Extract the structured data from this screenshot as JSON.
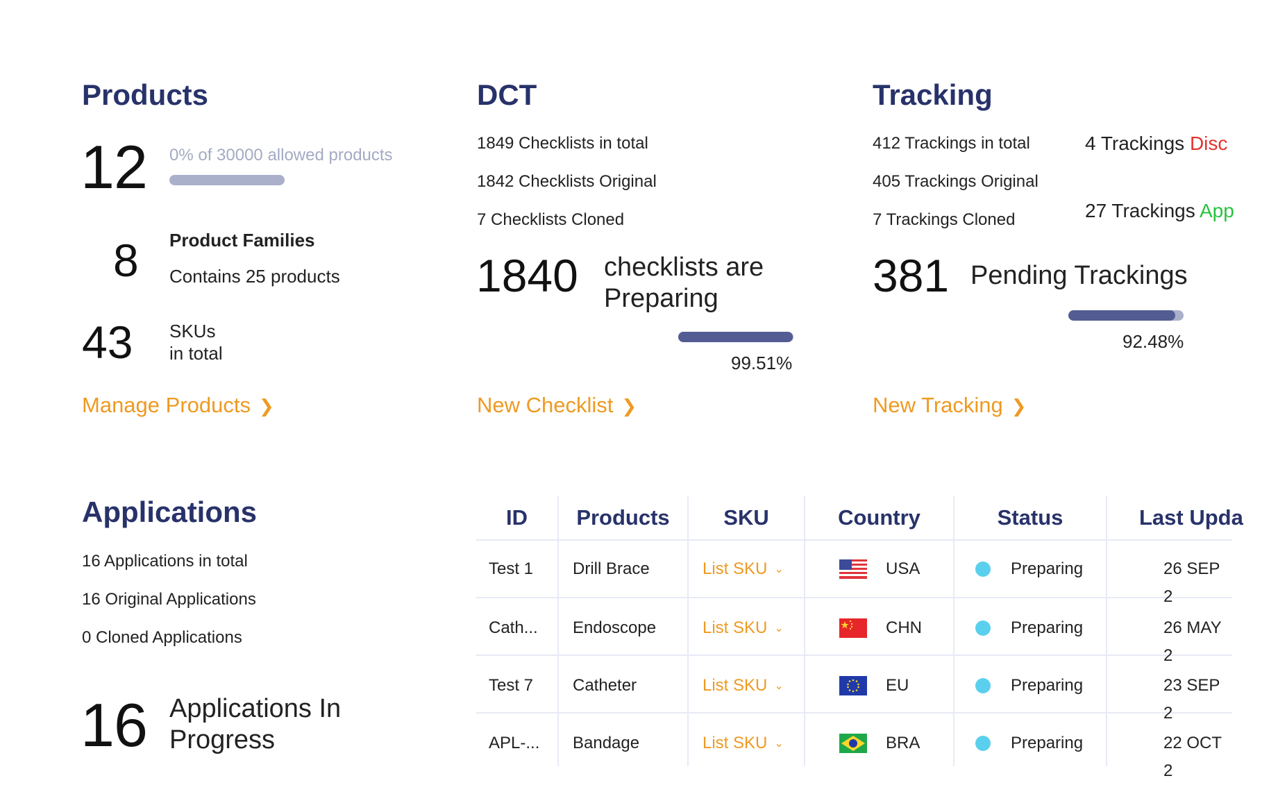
{
  "products": {
    "title": "Products",
    "count": "12",
    "allowed_text": "0% of 30000 allowed products",
    "allowed_fraction": 0.0,
    "families_count": "8",
    "families_label": "Product Families",
    "families_sub": "Contains 25 products",
    "skus_count": "43",
    "skus_line1": "SKUs",
    "skus_line2": "in total",
    "link": "Manage Products"
  },
  "dct": {
    "title": "DCT",
    "total": "1849 Checklists in total",
    "original": "1842 Checklists Original",
    "cloned": "7 Checklists Cloned",
    "preparing_count": "1840",
    "preparing_line1": "checklists are",
    "preparing_line2": "Preparing",
    "percent": "99.51%",
    "progress": 0.9951,
    "link": "New Checklist"
  },
  "tracking": {
    "title": "Tracking",
    "total": "412 Trackings in total",
    "original": "405 Trackings Original",
    "cloned": "7 Trackings Cloned",
    "disc_prefix": "4 Trackings ",
    "disc_word": "Disc",
    "app_prefix": "27 Trackings ",
    "app_word": "App",
    "pending_count": "381",
    "pending_label": "Pending Trackings",
    "percent": "92.48%",
    "progress": 0.9248,
    "link": "New Tracking"
  },
  "applications": {
    "title": "Applications",
    "total": "16 Applications in total",
    "original": "16 Original Applications",
    "cloned": "0 Cloned Applications",
    "progress_count": "16",
    "progress_line1": "Applications In",
    "progress_line2": "Progress"
  },
  "table": {
    "headers": [
      "ID",
      "Products",
      "SKU",
      "Country",
      "Status",
      "Last Upda"
    ],
    "rows": [
      {
        "id": "Test 1",
        "product": "Drill Brace",
        "sku": "List SKU",
        "flag": "flag-usa-icon",
        "country": "USA",
        "status": "Preparing",
        "updated": "26 SEP 2"
      },
      {
        "id": "Cath...",
        "product": "Endoscope",
        "sku": "List SKU",
        "flag": "flag-china-icon",
        "country": "CHN",
        "status": "Preparing",
        "updated": "26 MAY 2"
      },
      {
        "id": "Test 7",
        "product": "Catheter",
        "sku": "List SKU",
        "flag": "flag-eu-icon",
        "country": "EU",
        "status": "Preparing",
        "updated": "23 SEP 2"
      },
      {
        "id": "APL-...",
        "product": "Bandage",
        "sku": "List SKU",
        "flag": "flag-brazil-icon",
        "country": "BRA",
        "status": "Preparing",
        "updated": "22 OCT 2"
      }
    ]
  },
  "colors": {
    "heading": "#28326a",
    "accent_link": "#ee9a22",
    "bar_fill": "#535d93",
    "bar_track": "#aab0c9",
    "status_dot": "#5ad0ee",
    "discrepancy": "#e6322e",
    "approved": "#27c23e"
  }
}
